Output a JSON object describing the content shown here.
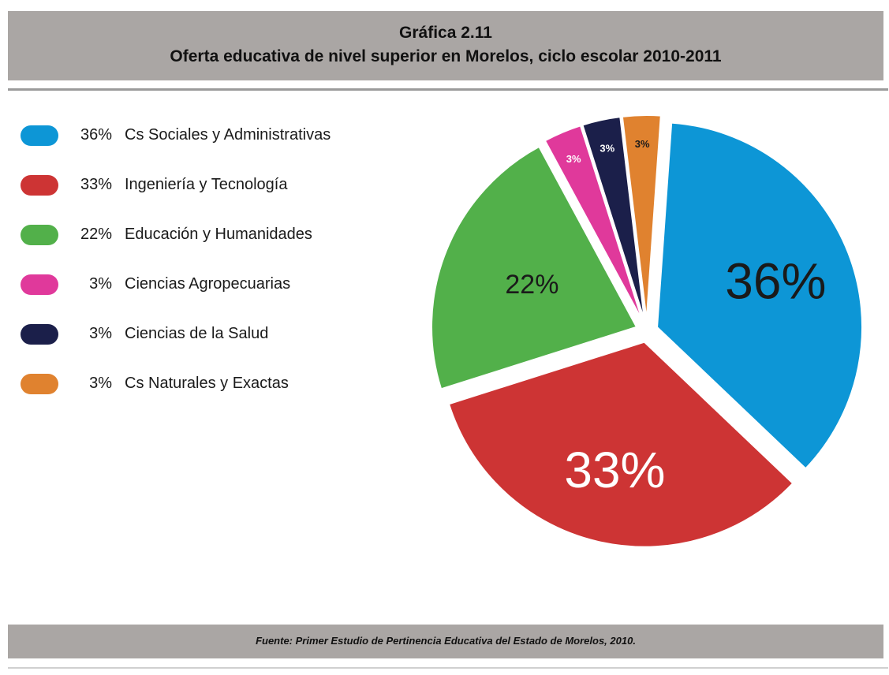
{
  "header": {
    "line1": "Gráfica 2.11",
    "line2": "Oferta educativa de nivel superior en Morelos, ciclo escolar 2010-2011"
  },
  "footer": {
    "source": "Fuente: Primer Estudio de Pertinencia Educativa del Estado de Morelos, 2010."
  },
  "chart_data": {
    "type": "pie",
    "title": "Oferta educativa de nivel superior en Morelos, ciclo escolar 2010-2011",
    "legend_position": "left",
    "slices": [
      {
        "label": "Cs Sociales y Administrativas",
        "value": 36,
        "pct_label": "36%",
        "color": "#0d96d6"
      },
      {
        "label": "Ingeniería y Tecnología",
        "value": 33,
        "pct_label": "33%",
        "color": "#cd3434"
      },
      {
        "label": "Educación y Humanidades",
        "value": 22,
        "pct_label": "22%",
        "color": "#52b04a"
      },
      {
        "label": "Ciencias Agropecuarias",
        "value": 3,
        "pct_label": "3%",
        "color": "#e0399b"
      },
      {
        "label": "Ciencias de la Salud",
        "value": 3,
        "pct_label": "3%",
        "color": "#1b1f4a"
      },
      {
        "label": "Cs Naturales y Exactas",
        "value": 3,
        "pct_label": "3%",
        "color": "#e0822f"
      }
    ]
  }
}
